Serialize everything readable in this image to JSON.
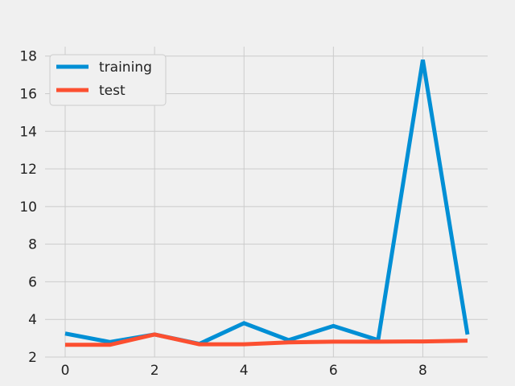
{
  "chart_data": {
    "type": "line",
    "title": "",
    "xlabel": "",
    "ylabel": "",
    "x": [
      0,
      1,
      2,
      3,
      4,
      5,
      6,
      7,
      8,
      9
    ],
    "xlim": [
      -0.45,
      9.45
    ],
    "ylim": [
      2,
      18.5
    ],
    "xticks": [
      0,
      2,
      4,
      6,
      8
    ],
    "yticks": [
      2,
      4,
      6,
      8,
      10,
      12,
      14,
      16,
      18
    ],
    "grid": true,
    "legend_position": "upper-left",
    "series": [
      {
        "name": "training",
        "color": "#008fd5",
        "values": [
          3.25,
          2.8,
          3.2,
          2.7,
          3.8,
          2.9,
          3.65,
          2.9,
          17.8,
          3.2
        ]
      },
      {
        "name": "test",
        "color": "#fc4f30",
        "values": [
          2.65,
          2.65,
          3.2,
          2.68,
          2.68,
          2.78,
          2.82,
          2.82,
          2.83,
          2.87
        ]
      }
    ]
  },
  "style": {
    "background": "#f0f0f0",
    "grid_color": "#cbcbcb",
    "legend_background": "#f0f0f0",
    "legend_border": "#cccccc"
  }
}
